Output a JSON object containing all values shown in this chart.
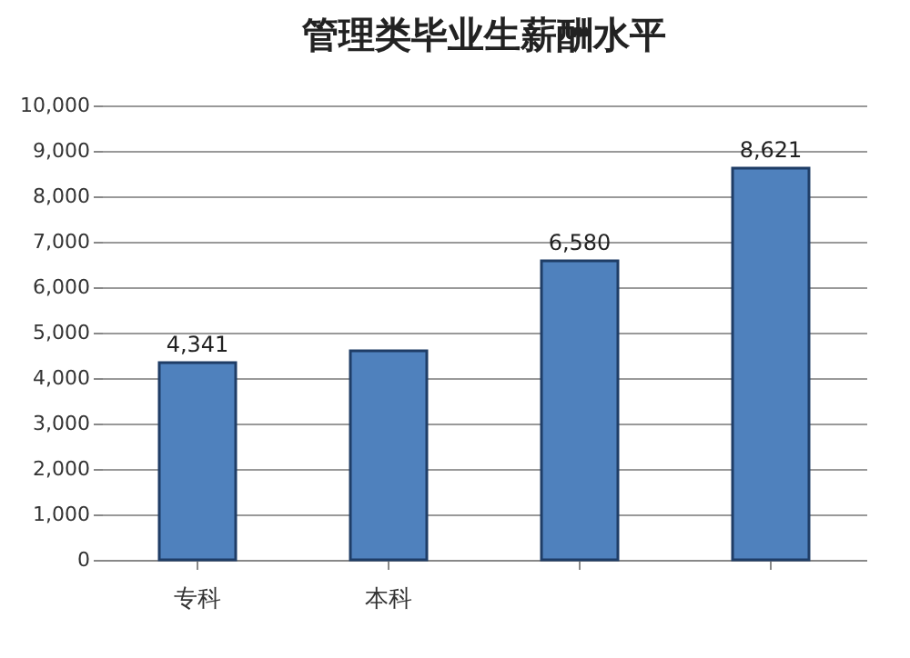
{
  "chart_data": {
    "type": "bar",
    "title": "管理类毕业生薪酬水平",
    "categories": [
      "专科",
      "本科",
      null,
      null
    ],
    "values": [
      4341,
      4600,
      6580,
      8621
    ],
    "value_labels": [
      "4,341",
      null,
      "6,580",
      "8,621"
    ],
    "color": "#4f81bd",
    "ylim": [
      0,
      10000
    ],
    "yticks": [
      0,
      {
        "value": 1000,
        "label": "1,000"
      },
      {
        "value": 2000,
        "label": "2,000"
      },
      {
        "value": 3000,
        "label": "3,000"
      },
      {
        "value": 4000,
        "label": "4,000"
      },
      {
        "value": 5000,
        "label": "5,000"
      },
      {
        "value": 6000,
        "label": "6,000"
      },
      {
        "value": 7000,
        "label": "7,000"
      },
      {
        "value": 8000,
        "label": "8,000"
      },
      {
        "value": 9000,
        "label": "9,000"
      },
      {
        "value": 10000,
        "label": "10,000"
      }
    ],
    "grid": "y"
  }
}
